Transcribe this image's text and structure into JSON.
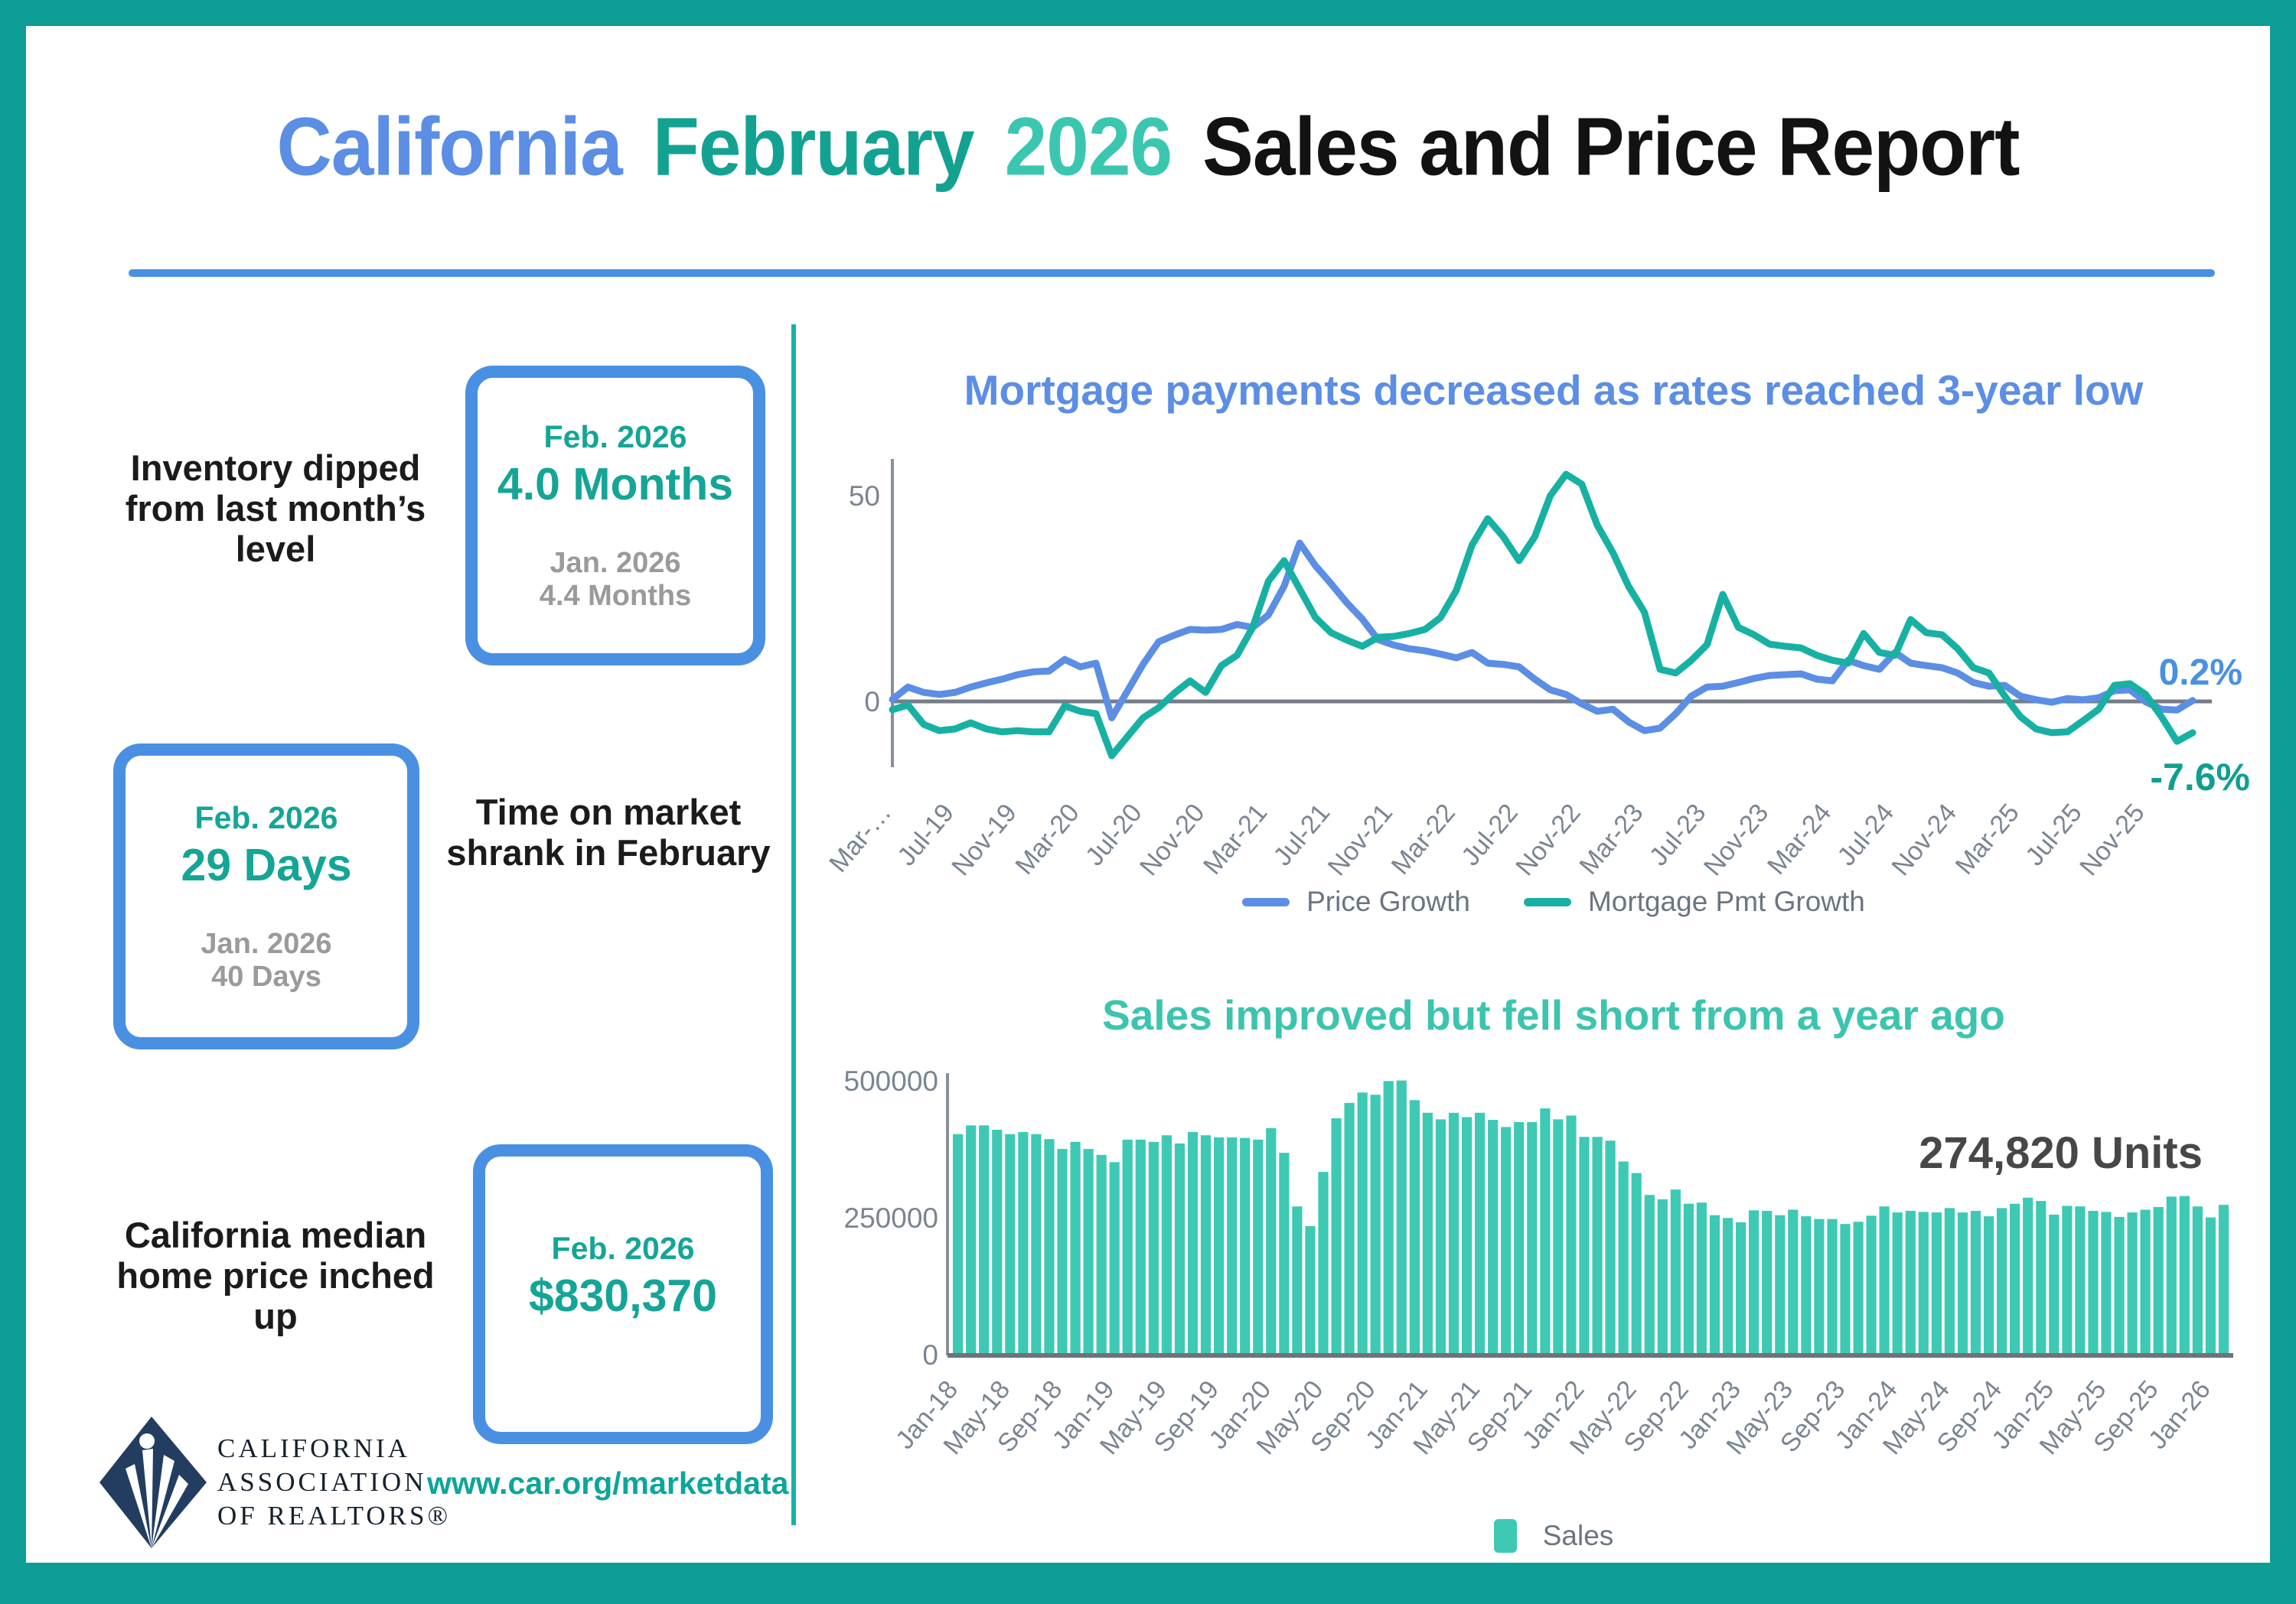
{
  "header": {
    "title_parts": [
      {
        "text": "California",
        "color": "#5b8ee4"
      },
      {
        "text": "February",
        "color": "#13a292"
      },
      {
        "text": "2026",
        "color": "#3bc6b0"
      },
      {
        "text": "Sales and Price Report",
        "color": "#121212"
      }
    ]
  },
  "stats": [
    {
      "headline": "Inventory dipped from last month’s level",
      "current_label": "Feb. 2026",
      "current_value": "4.0 Months",
      "previous_label": "Jan. 2026",
      "previous_value": "4.4 Months"
    },
    {
      "headline": "Time on market shrank in February",
      "current_label": "Feb. 2026",
      "current_value": "29 Days",
      "previous_label": "Jan. 2026",
      "previous_value": "40 Days"
    },
    {
      "headline": "California median home price inched up",
      "current_label": "Feb. 2026",
      "current_value": "$830,370",
      "previous_label": "",
      "previous_value": ""
    }
  ],
  "footer": {
    "logo_lines": [
      "CALIFORNIA",
      "ASSOCIATION",
      "OF REALTORS®"
    ],
    "website": "www.car.org/marketdata"
  },
  "chart_data": [
    {
      "type": "line",
      "title": "Mortgage payments decreased as rates reached 3-year low",
      "ylim": [
        -15,
        60
      ],
      "y_ticks": [
        0,
        50
      ],
      "grid": false,
      "legend_position": "bottom",
      "label_every": 4,
      "x_tick_labels": [
        "Mar-…",
        "Jul-19",
        "Nov-19",
        "Mar-20",
        "Jul-20",
        "Nov-20",
        "Mar-21",
        "Jul-21",
        "Nov-21",
        "Mar-22",
        "Jul-22",
        "Nov-22",
        "Mar-23",
        "Jul-23",
        "Nov-23",
        "Mar-24",
        "Jul-24",
        "Nov-24",
        "Mar-25",
        "Jul-25",
        "Nov-25"
      ],
      "x_start": "Mar-19",
      "x_end": "Feb-26",
      "series": [
        {
          "name": "Price Growth",
          "color": "#5b8ee4",
          "values": [
            0.5,
            3.5,
            2.2,
            1.7,
            2.2,
            3.5,
            4.5,
            5.4,
            6.5,
            7.2,
            7.4,
            10.2,
            8.4,
            9.3,
            -4,
            2.5,
            9,
            14.5,
            16.1,
            17.5,
            17.3,
            17.5,
            18.7,
            18,
            21,
            28,
            38.5,
            33,
            28.6,
            24,
            20,
            15,
            13.7,
            12.8,
            12.3,
            11.5,
            10.6,
            11.9,
            9.3,
            9,
            8.4,
            5.4,
            2.8,
            1.7,
            -0.6,
            -2.4,
            -1.9,
            -5,
            -7.1,
            -6.5,
            -3,
            1.3,
            3.5,
            3.7,
            4.6,
            5.6,
            6.3,
            6.5,
            6.7,
            5.4,
            5,
            10,
            8.7,
            7.8,
            11.9,
            9.3,
            8.7,
            8.2,
            6.9,
            4.6,
            3.7,
            3.9,
            1.3,
            0.4,
            -0.2,
            0.7,
            0.4,
            0.9,
            2.6,
            2.8,
            -0.1,
            -1.9,
            -2.1,
            0.2
          ]
        },
        {
          "name": "Mortgage Pmt Growth",
          "color": "#17b1a3",
          "values": [
            -2,
            -0.9,
            -5.6,
            -7.1,
            -6.7,
            -5.2,
            -6.7,
            -7.4,
            -7.1,
            -7.4,
            -7.4,
            -1.1,
            -2.4,
            -3,
            -13.2,
            -8.6,
            -4,
            -1.5,
            2,
            5,
            2.2,
            8.7,
            11.2,
            18,
            29.2,
            34.2,
            27.3,
            20.4,
            16.7,
            14.9,
            13.4,
            15.6,
            15.8,
            16.5,
            17.5,
            20.4,
            27,
            38,
            44.4,
            40,
            34.2,
            40,
            50,
            55.2,
            52.8,
            42.8,
            36.1,
            27.9,
            21.7,
            7.8,
            6.9,
            10,
            13.8,
            26,
            18,
            16.2,
            13.9,
            13.4,
            13,
            11.2,
            10,
            9.3,
            16.5,
            11.9,
            11.2,
            19.9,
            16.7,
            16.2,
            12.8,
            8.2,
            6.9,
            1.3,
            -3.7,
            -6.7,
            -7.6,
            -7.4,
            -4.7,
            -1.9,
            3.9,
            4.3,
            1.7,
            -3.7,
            -9.7,
            -7.6
          ]
        }
      ],
      "end_annotations": [
        {
          "text": "0.2%",
          "color": "#4a90e2",
          "series": "Price Growth"
        },
        {
          "text": "-7.6%",
          "color": "#0f9f90",
          "series": "Mortgage Pmt Growth"
        }
      ]
    },
    {
      "type": "bar",
      "title": "Sales improved but fell short from a year ago",
      "annotation": "274,820 Units",
      "annotation_color": "#474747",
      "ylim": [
        0,
        520000
      ],
      "y_ticks": [
        0,
        250000,
        500000
      ],
      "label_every": 4,
      "x_tick_labels": [
        "Jan-18",
        "May-18",
        "Sep-18",
        "Jan-19",
        "May-19",
        "Sep-19",
        "Jan-20",
        "May-20",
        "Sep-20",
        "Jan-21",
        "May-21",
        "Sep-21",
        "Jan-22",
        "May-22",
        "Sep-22",
        "Jan-23",
        "May-23",
        "Sep-23",
        "Jan-24",
        "May-24",
        "Sep-24",
        "Jan-25",
        "May-25",
        "Sep-25",
        "Jan-26"
      ],
      "series": [
        {
          "name": "Sales",
          "color": "#3ec9b4",
          "values": [
            404000,
            420000,
            420000,
            412000,
            404000,
            408000,
            404000,
            395000,
            377000,
            390000,
            377000,
            366000,
            353000,
            394000,
            394000,
            390000,
            402000,
            387000,
            408000,
            402000,
            398000,
            398000,
            397000,
            394000,
            415000,
            370000,
            272000,
            236000,
            335000,
            433000,
            461000,
            480000,
            476000,
            501000,
            502000,
            466000,
            443000,
            431000,
            443000,
            435000,
            443000,
            430000,
            417000,
            426000,
            426000,
            451000,
            431000,
            438000,
            399000,
            399000,
            392000,
            354000,
            333000,
            293000,
            285000,
            303000,
            277000,
            279000,
            256000,
            251000,
            243000,
            265000,
            264000,
            256000,
            266000,
            254000,
            249000,
            249000,
            240000,
            244000,
            255000,
            272000,
            261000,
            264000,
            262000,
            261000,
            269000,
            261000,
            264000,
            254000,
            269000,
            277000,
            288000,
            282000,
            257000,
            273000,
            272000,
            264000,
            262000,
            253000,
            261000,
            266000,
            271000,
            290000,
            291000,
            272000,
            252000,
            274820
          ]
        }
      ]
    }
  ]
}
